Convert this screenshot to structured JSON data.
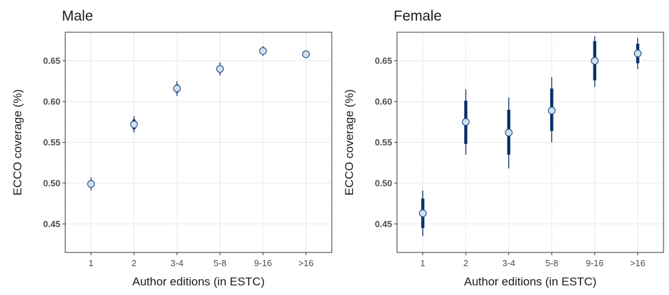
{
  "chart_data": [
    {
      "type": "scatter",
      "title": "Male",
      "xlabel": "Author editions (in ESTC)",
      "ylabel": "ECCO coverage (%)",
      "categories": [
        "1",
        "2",
        "3-4",
        "5-8",
        "9-16",
        ">16"
      ],
      "ylim": [
        0.415,
        0.685
      ],
      "yticks": [
        "0.45",
        "0.50",
        "0.55",
        "0.60",
        "0.65"
      ],
      "grid": true,
      "point_color": "#cfe0ef",
      "interval_color": "#08306b",
      "points": [
        {
          "x": "1",
          "y": 0.499,
          "inner": [
            0.495,
            0.503
          ],
          "outer": [
            0.491,
            0.507
          ]
        },
        {
          "x": "2",
          "y": 0.572,
          "inner": [
            0.566,
            0.578
          ],
          "outer": [
            0.562,
            0.582
          ]
        },
        {
          "x": "3-4",
          "y": 0.616,
          "inner": [
            0.611,
            0.621
          ],
          "outer": [
            0.607,
            0.625
          ]
        },
        {
          "x": "5-8",
          "y": 0.64,
          "inner": [
            0.636,
            0.644
          ],
          "outer": [
            0.632,
            0.648
          ]
        },
        {
          "x": "9-16",
          "y": 0.662,
          "inner": [
            0.659,
            0.665
          ],
          "outer": [
            0.656,
            0.668
          ]
        },
        {
          "x": ">16",
          "y": 0.658,
          "inner": [
            0.656,
            0.66
          ],
          "outer": [
            0.654,
            0.662
          ]
        }
      ]
    },
    {
      "type": "scatter",
      "title": "Female",
      "xlabel": "Author editions (in ESTC)",
      "ylabel": "ECCO coverage (%)",
      "categories": [
        "1",
        "2",
        "3-4",
        "5-8",
        "9-16",
        ">16"
      ],
      "ylim": [
        0.415,
        0.685
      ],
      "yticks": [
        "0.45",
        "0.50",
        "0.55",
        "0.60",
        "0.65"
      ],
      "grid": true,
      "point_color": "#cfe0ef",
      "interval_color": "#08306b",
      "points": [
        {
          "x": "1",
          "y": 0.463,
          "inner": [
            0.445,
            0.481
          ],
          "outer": [
            0.435,
            0.491
          ]
        },
        {
          "x": "2",
          "y": 0.575,
          "inner": [
            0.548,
            0.601
          ],
          "outer": [
            0.535,
            0.615
          ]
        },
        {
          "x": "3-4",
          "y": 0.562,
          "inner": [
            0.535,
            0.59
          ],
          "outer": [
            0.518,
            0.605
          ]
        },
        {
          "x": "5-8",
          "y": 0.589,
          "inner": [
            0.564,
            0.616
          ],
          "outer": [
            0.55,
            0.63
          ]
        },
        {
          "x": "9-16",
          "y": 0.65,
          "inner": [
            0.626,
            0.674
          ],
          "outer": [
            0.618,
            0.68
          ]
        },
        {
          "x": ">16",
          "y": 0.659,
          "inner": [
            0.647,
            0.671
          ],
          "outer": [
            0.64,
            0.678
          ]
        }
      ]
    }
  ]
}
